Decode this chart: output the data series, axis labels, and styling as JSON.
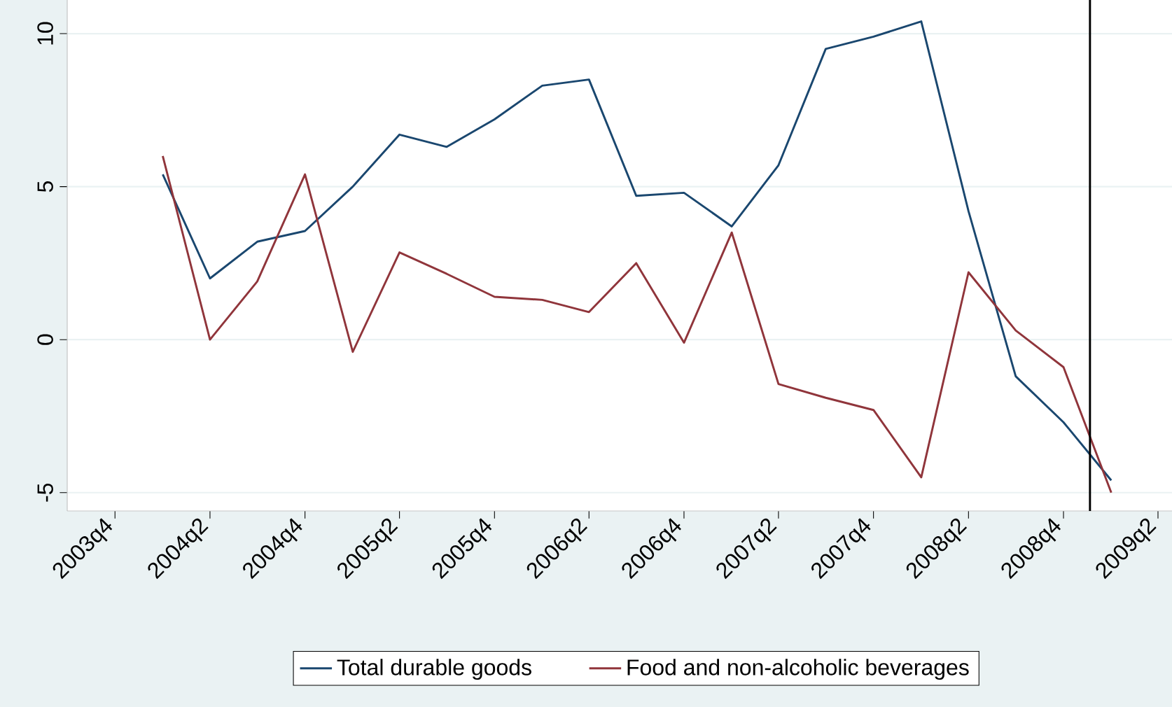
{
  "chart_data": {
    "type": "line",
    "x": [
      "2004-01-01",
      "2004-04-01",
      "2004-07-01",
      "2004-10-01",
      "2005-01-01",
      "2005-04-01",
      "2005-07-01",
      "2005-10-01",
      "2006-01-01",
      "2006-04-01",
      "2006-07-01",
      "2006-10-01",
      "2007-01-01",
      "2007-04-01",
      "2007-07-01",
      "2007-10-01",
      "2008-01-01",
      "2008-04-01",
      "2008-07-01",
      "2008-10-01",
      "2009-01-01"
    ],
    "series": [
      {
        "name": "Total durable goods",
        "color": "#1a476f",
        "values": [
          5.4,
          2.0,
          3.2,
          3.55,
          5.0,
          6.7,
          6.3,
          7.2,
          8.3,
          8.5,
          4.7,
          4.8,
          3.7,
          5.7,
          9.5,
          9.9,
          10.4,
          4.2,
          -1.2,
          -2.7,
          -4.6
        ]
      },
      {
        "name": "Food and non-alcoholic beverages",
        "color": "#90353b",
        "values": [
          6.0,
          0.0,
          1.9,
          5.4,
          -0.4,
          2.85,
          2.15,
          1.4,
          1.3,
          0.9,
          2.5,
          -0.1,
          3.5,
          -1.45,
          -1.9,
          -2.3,
          -4.5,
          2.2,
          0.3,
          -0.9,
          -5.0
        ]
      }
    ],
    "xlim": [
      "2003-07-01",
      "2009-04-28"
    ],
    "xticks": [
      {
        "value": "2003-10-01",
        "label": "2003q4"
      },
      {
        "value": "2004-04-01",
        "label": "2004q2"
      },
      {
        "value": "2004-10-01",
        "label": "2004q4"
      },
      {
        "value": "2005-04-01",
        "label": "2005q2"
      },
      {
        "value": "2005-10-01",
        "label": "2005q4"
      },
      {
        "value": "2006-04-01",
        "label": "2006q2"
      },
      {
        "value": "2006-10-01",
        "label": "2006q4"
      },
      {
        "value": "2007-04-01",
        "label": "2007q2"
      },
      {
        "value": "2007-10-01",
        "label": "2007q4"
      },
      {
        "value": "2008-04-01",
        "label": "2008q2"
      },
      {
        "value": "2008-10-01",
        "label": "2008q4"
      },
      {
        "value": "2009-04-01",
        "label": "2009q2"
      }
    ],
    "ylim": [
      -5.6,
      11.1
    ],
    "yticks": [
      -5,
      0,
      5,
      10
    ],
    "ref_lines": [
      {
        "axis": "x",
        "value": "2008-11-21",
        "color": "#000000"
      }
    ],
    "grid": "y",
    "legend": "bottom",
    "marker": "none",
    "line_style": "solid"
  }
}
